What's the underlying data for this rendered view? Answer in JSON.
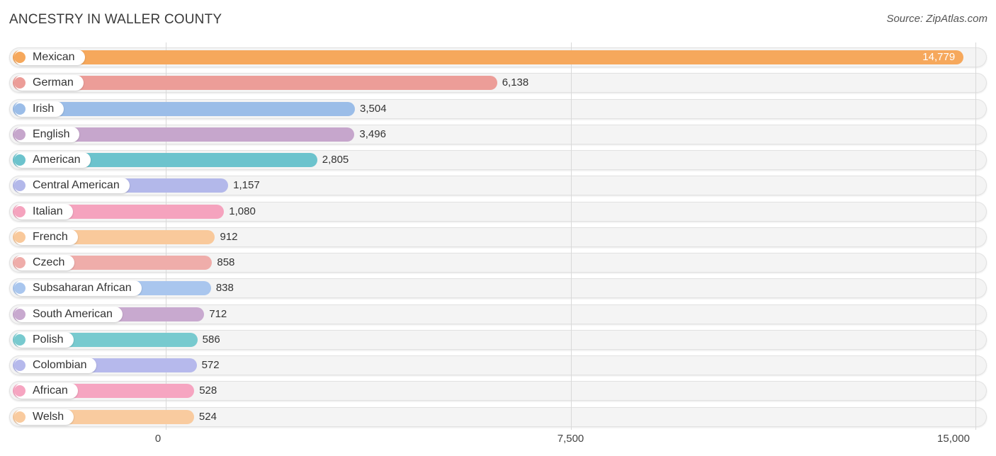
{
  "title": "ANCESTRY IN WALLER COUNTY",
  "source": "Source: ZipAtlas.com",
  "chart_data": {
    "type": "bar",
    "orientation": "horizontal",
    "title": "ANCESTRY IN WALLER COUNTY",
    "xlabel": "",
    "ylabel": "",
    "xlim": [
      0,
      15000
    ],
    "grid": true,
    "tick_values": [
      0,
      7500,
      15000
    ],
    "tick_labels": [
      "0",
      "7,500",
      "15,000"
    ],
    "categories": [
      "Mexican",
      "German",
      "Irish",
      "English",
      "American",
      "Central American",
      "Italian",
      "French",
      "Czech",
      "Subsaharan African",
      "South American",
      "Polish",
      "Colombian",
      "African",
      "Welsh"
    ],
    "values": [
      14779,
      6138,
      3504,
      3496,
      2805,
      1157,
      1080,
      912,
      858,
      838,
      712,
      586,
      572,
      528,
      524
    ],
    "value_labels": [
      "14,779",
      "6,138",
      "3,504",
      "3,496",
      "2,805",
      "1,157",
      "1,080",
      "912",
      "858",
      "838",
      "712",
      "586",
      "572",
      "528",
      "524"
    ],
    "colors": [
      "#f6a85c",
      "#ec9d98",
      "#9bbde8",
      "#c6a6cc",
      "#6cc3cd",
      "#b3b8ea",
      "#f5a3be",
      "#f9c99b",
      "#efadaa",
      "#a9c6ee",
      "#c8a9cf",
      "#78cacf",
      "#b6b9ec",
      "#f6a5c1",
      "#f9cb9f"
    ]
  }
}
